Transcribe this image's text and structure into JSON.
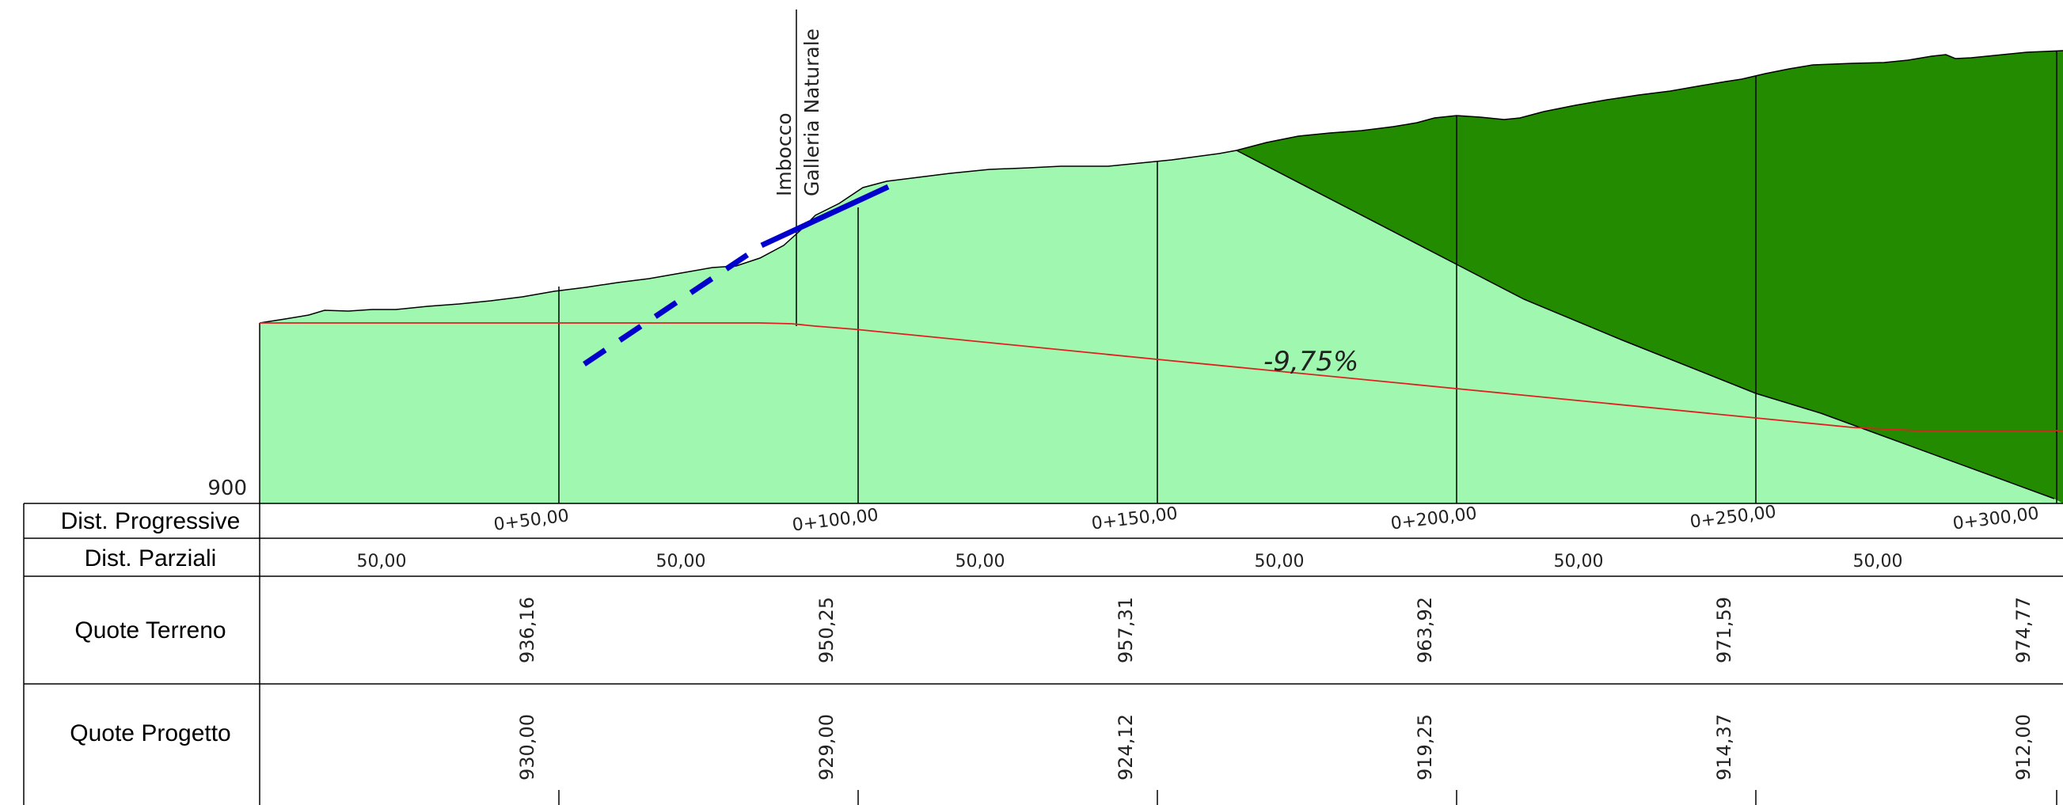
{
  "profile": {
    "datum_label": "900",
    "slope_label": "-9,75%",
    "tunnel_label_line1": "Imbocco",
    "tunnel_label_line2": "Galleria Naturale",
    "colors": {
      "terrain_fill": "#A0F8B0",
      "excavation_fill": "#228B00",
      "road_line": "#E02020",
      "tunnel_line": "#0000CC",
      "outline": "#000000"
    }
  },
  "table": {
    "row_labels": {
      "progressive": "Dist. Progressive",
      "partial": "Dist. Parziali",
      "terrain": "Quote Terreno",
      "project": "Quote Progetto"
    },
    "progressives": [
      "0+50,00",
      "0+100,00",
      "0+150,00",
      "0+200,00",
      "0+250,00",
      "0+300,00"
    ],
    "partials": [
      "50,00",
      "50,00",
      "50,00",
      "50,00",
      "50,00",
      "50,00"
    ],
    "terrain_elevations": [
      "936,16",
      "950,25",
      "957,31",
      "963,92",
      "971,59",
      "974,77"
    ],
    "project_elevations": [
      "930,00",
      "929,00",
      "924,12",
      "919,25",
      "914,37",
      "912,00"
    ]
  }
}
